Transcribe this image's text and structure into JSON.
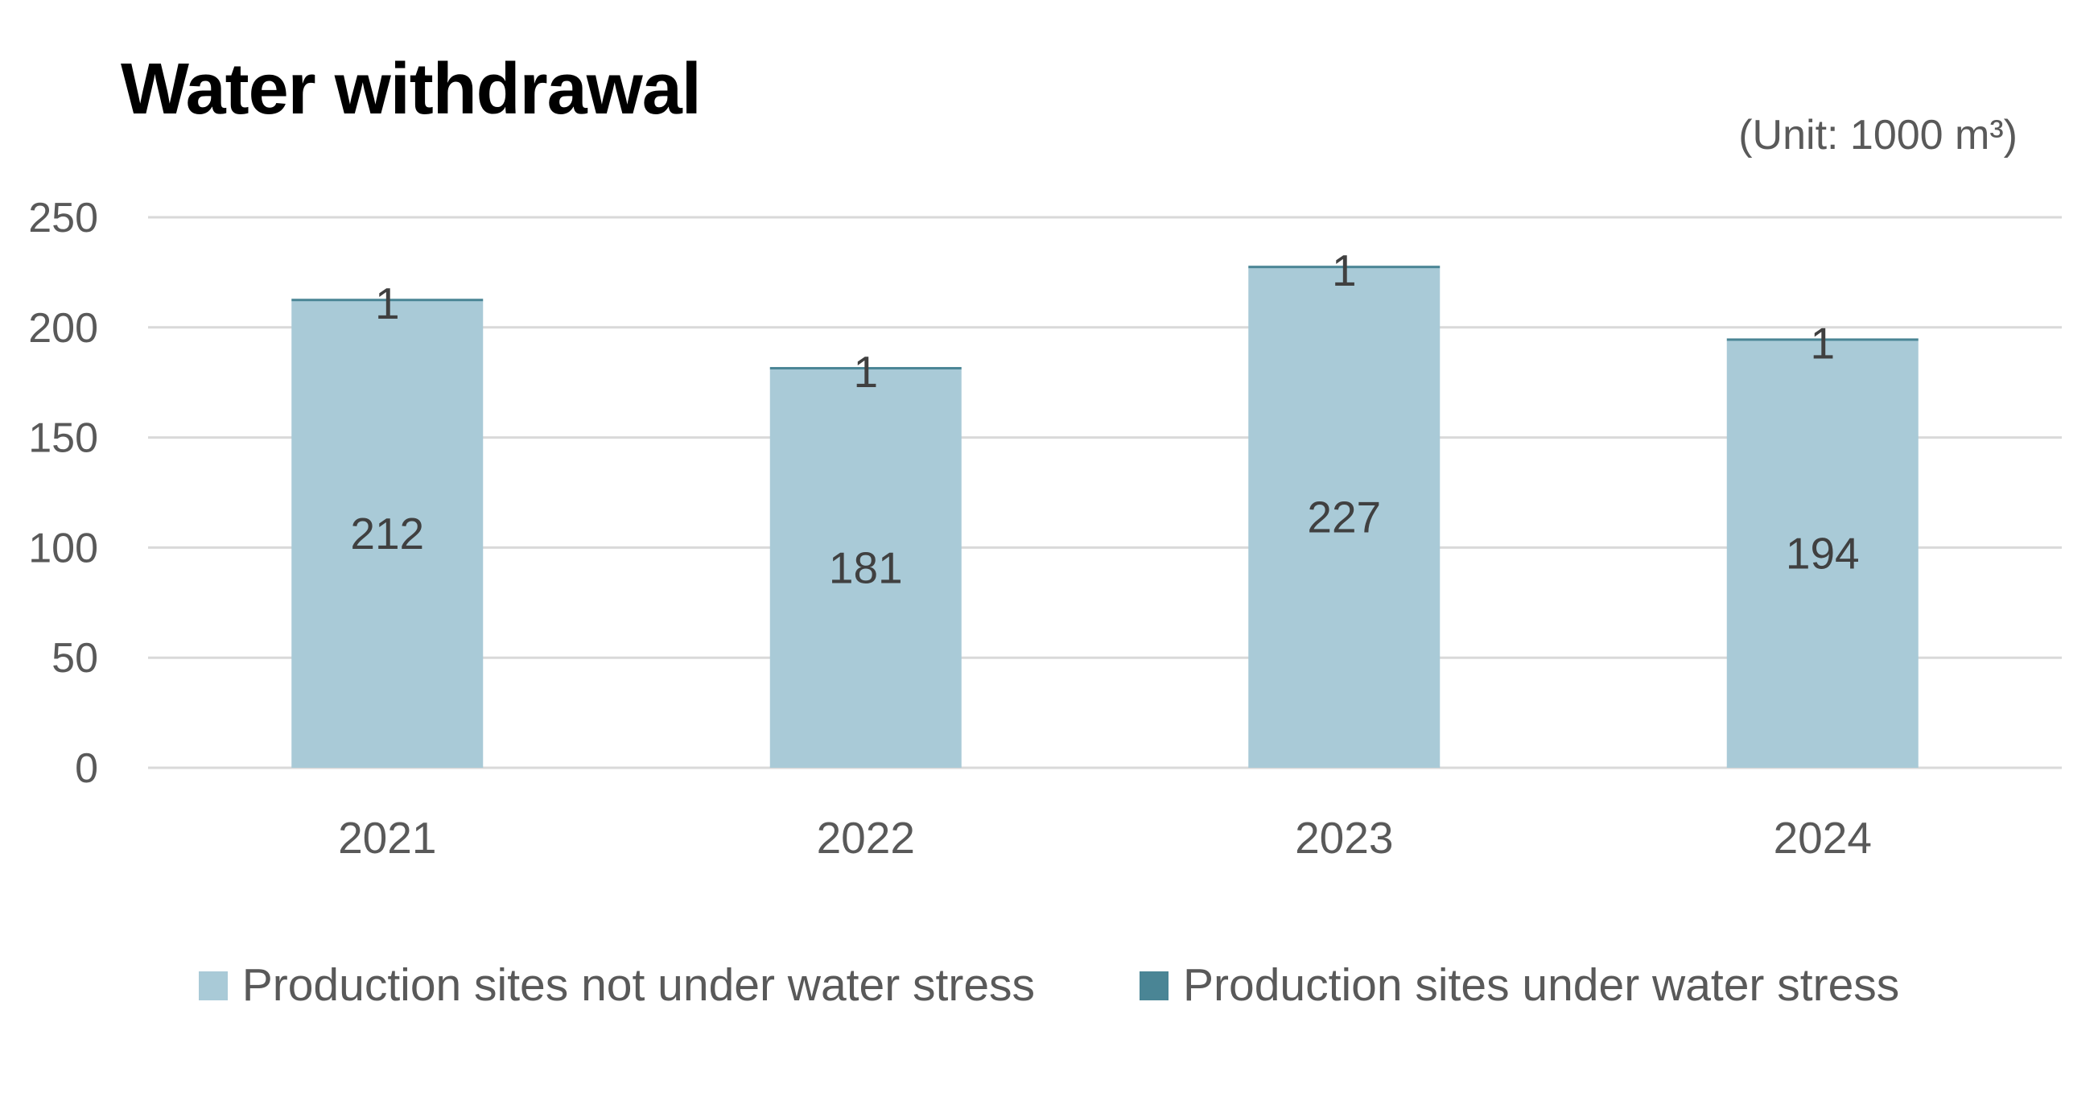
{
  "chart_data": {
    "type": "bar",
    "stacked": true,
    "title": "Water withdrawal",
    "unit_label": "(Unit: 1000 m³)",
    "categories": [
      "2021",
      "2022",
      "2023",
      "2024"
    ],
    "series": [
      {
        "name": "Production sites not under water stress",
        "values": [
          212,
          181,
          227,
          194
        ],
        "color": "#a9cad7"
      },
      {
        "name": "Production sites under water stress",
        "values": [
          1,
          1,
          1,
          1
        ],
        "color": "#4a8595"
      }
    ],
    "ylim": [
      0,
      250
    ],
    "yticks": [
      0,
      50,
      100,
      150,
      200,
      250
    ],
    "grid": true,
    "legend": "bottom",
    "colors": {
      "gridline": "#d9d9d9",
      "axis_text": "#595959",
      "data_label": "#404040"
    }
  }
}
